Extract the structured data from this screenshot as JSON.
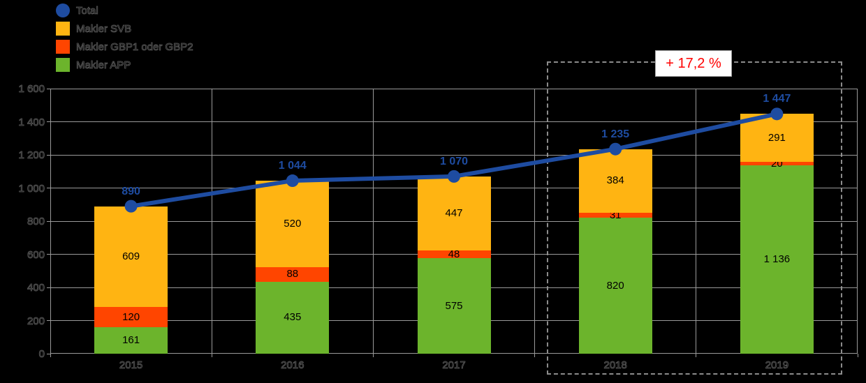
{
  "legend": {
    "items": [
      {
        "label": "Total",
        "color": "#1E4CA1",
        "shape": "circle"
      },
      {
        "label": "Makler SVB",
        "color": "#FFB412",
        "shape": "square"
      },
      {
        "label": "Makler GBP1 oder GBP2",
        "color": "#FF4500",
        "shape": "square"
      },
      {
        "label": "Makler APP",
        "color": "#6CB42C",
        "shape": "square"
      }
    ]
  },
  "annotation": {
    "text": "+ 17,2 %",
    "color": "#FF0000"
  },
  "chart_data": {
    "type": "bar",
    "subtype": "stacked-bars-with-total-line",
    "categories": [
      "2015",
      "2016",
      "2017",
      "2018",
      "2019"
    ],
    "series": [
      {
        "name": "Makler APP",
        "type": "bar",
        "color": "#6CB42C",
        "values": [
          161,
          435,
          575,
          820,
          1136
        ],
        "labels": [
          "161",
          "435",
          "575",
          "820",
          "1 136"
        ]
      },
      {
        "name": "Makler GBP1 oder GBP2",
        "type": "bar",
        "color": "#FF4500",
        "values": [
          120,
          88,
          48,
          31,
          20
        ],
        "labels": [
          "120",
          "88",
          "48",
          "31",
          "20"
        ]
      },
      {
        "name": "Makler SVB",
        "type": "bar",
        "color": "#FFB412",
        "values": [
          609,
          520,
          447,
          384,
          291
        ],
        "labels": [
          "609",
          "520",
          "447",
          "384",
          "291"
        ]
      },
      {
        "name": "Total",
        "type": "line",
        "color": "#1E4CA1",
        "values": [
          890,
          1044,
          1070,
          1235,
          1447
        ],
        "labels": [
          "890",
          "1 044",
          "1 070",
          "1 235",
          "1 447"
        ]
      }
    ],
    "ylim": [
      0,
      1600
    ],
    "ytick_step": 200,
    "ytick_labels": [
      "0",
      "200",
      "400",
      "600",
      "800",
      "1 000",
      "1 200",
      "1 400",
      "1 600"
    ],
    "grid": true,
    "legend_position": "top-left",
    "highlight": {
      "categories": [
        "2018",
        "2019"
      ],
      "label": "+ 17,2 %"
    }
  }
}
